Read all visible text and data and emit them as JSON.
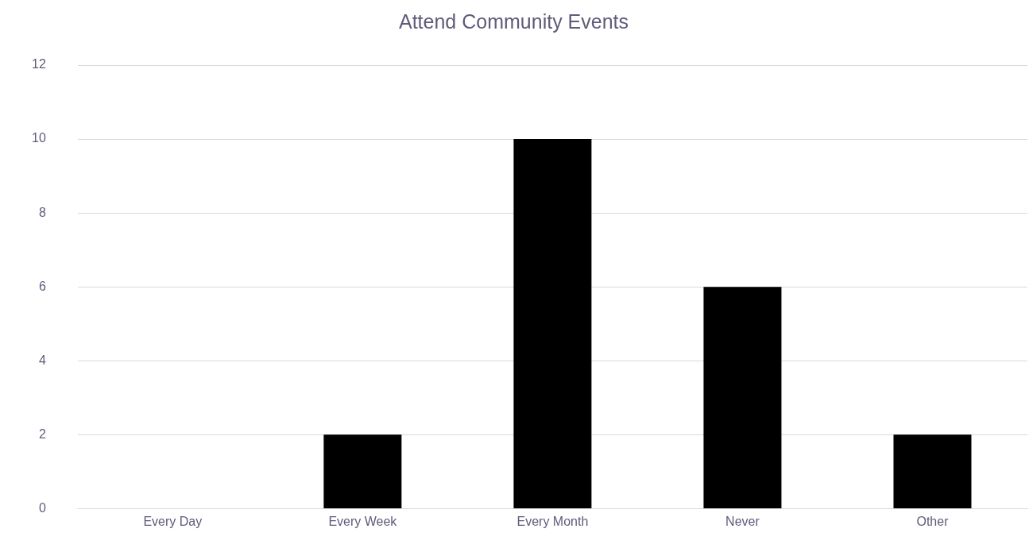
{
  "chart_data": {
    "type": "bar",
    "title": "Attend Community Events",
    "categories": [
      "Every Day",
      "Every Week",
      "Every Month",
      "Never",
      "Other"
    ],
    "values": [
      0,
      2,
      10,
      6,
      2
    ],
    "color": "#000000",
    "ylim": [
      0,
      12
    ],
    "yticks": [
      0,
      2,
      4,
      6,
      8,
      10,
      12
    ],
    "grid": "y",
    "legend": false
  }
}
